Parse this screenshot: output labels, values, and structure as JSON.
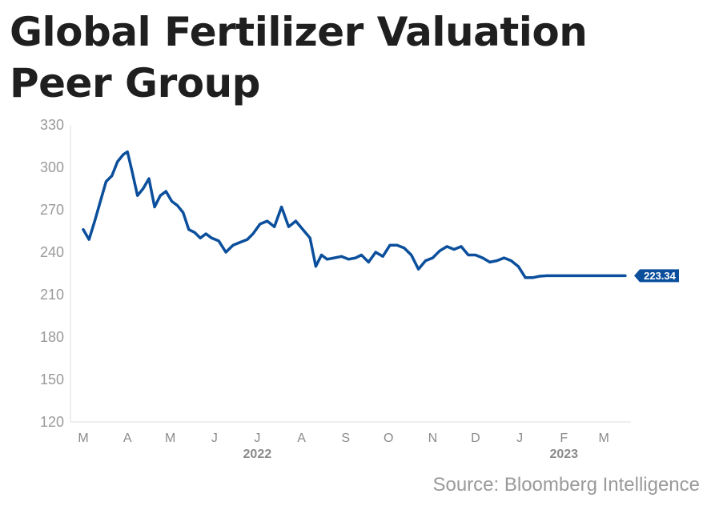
{
  "title_line1": "Global Fertilizer Valuation",
  "title_line2": "Peer Group",
  "source": "Source: Bloomberg Intelligence",
  "line_color": "#0b4f9c",
  "chart_data": {
    "type": "line",
    "title": "Global Fertilizer Valuation Peer Group",
    "ylim": [
      120,
      330
    ],
    "yticks": [
      120,
      150,
      180,
      210,
      240,
      270,
      300,
      330
    ],
    "xticks": [
      "M",
      "A",
      "M",
      "J",
      "J",
      "A",
      "S",
      "O",
      "N",
      "D",
      "J",
      "F",
      "M"
    ],
    "year_labels": [
      {
        "label": "2022",
        "under_tick_index": 4
      },
      {
        "label": "2023",
        "under_tick_index": 11
      }
    ],
    "grid": false,
    "series": [
      {
        "x": [
          "2022-03-01",
          "2022-03-05",
          "2022-03-09",
          "2022-03-13",
          "2022-03-17",
          "2022-03-21",
          "2022-03-25",
          "2022-03-29",
          "2022-04-01",
          "2022-04-04",
          "2022-04-08",
          "2022-04-12",
          "2022-04-16",
          "2022-04-20",
          "2022-04-24",
          "2022-04-28",
          "2022-05-02",
          "2022-05-06",
          "2022-05-10",
          "2022-05-14",
          "2022-05-18",
          "2022-05-22",
          "2022-05-26",
          "2022-05-30",
          "2022-06-04",
          "2022-06-09",
          "2022-06-14",
          "2022-06-19",
          "2022-06-24",
          "2022-06-28",
          "2022-07-03",
          "2022-07-08",
          "2022-07-13",
          "2022-07-18",
          "2022-07-23",
          "2022-07-28",
          "2022-08-02",
          "2022-08-07",
          "2022-08-11",
          "2022-08-15",
          "2022-08-19",
          "2022-08-24",
          "2022-08-29",
          "2022-09-03",
          "2022-09-08",
          "2022-09-12",
          "2022-09-17",
          "2022-09-22",
          "2022-09-27",
          "2022-10-02",
          "2022-10-07",
          "2022-10-12",
          "2022-10-17",
          "2022-10-22",
          "2022-10-27",
          "2022-11-01",
          "2022-11-06",
          "2022-11-11",
          "2022-11-16",
          "2022-11-21",
          "2022-11-26",
          "2022-12-01",
          "2022-12-06",
          "2022-12-11",
          "2022-12-16",
          "2022-12-21",
          "2022-12-26",
          "2022-12-31",
          "2023-01-05",
          "2023-01-10",
          "2023-01-15",
          "2023-01-20",
          "2023-01-25",
          "2023-01-30",
          "2023-02-04",
          "2023-02-09",
          "2023-02-14",
          "2023-02-19",
          "2023-02-24",
          "2023-03-01",
          "2023-03-06",
          "2023-03-11",
          "2023-03-16"
        ],
        "values": [
          256,
          249,
          262,
          276,
          290,
          294,
          304,
          309,
          311,
          298,
          280,
          285,
          292,
          272,
          280,
          283,
          276,
          273,
          268,
          256,
          254,
          250,
          253,
          250,
          248,
          240,
          245,
          247,
          249,
          253,
          260,
          262,
          258,
          272,
          258,
          262,
          256,
          250,
          230,
          238,
          235,
          236,
          237,
          235,
          236,
          238,
          233,
          240,
          237,
          245,
          245,
          243,
          238,
          228,
          234,
          236,
          241,
          244,
          242,
          244,
          238,
          238,
          236,
          233,
          234,
          236,
          234,
          230,
          222,
          222,
          223,
          223.34,
          223.34,
          223.34,
          223.34,
          223.34,
          223.34,
          223.34,
          223.34,
          223.34,
          223.34,
          223.34,
          223.34
        ]
      }
    ],
    "last_value_label": "223.34"
  }
}
